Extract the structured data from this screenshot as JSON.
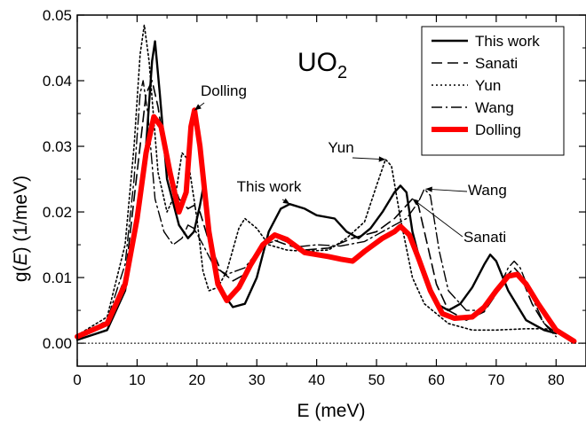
{
  "chart_data": {
    "type": "line",
    "title": "UO",
    "title_subscript": "2",
    "xlabel": "E (meV)",
    "ylabel_prefix": "g(",
    "ylabel_italic": "E",
    "ylabel_suffix": ") (1/meV)",
    "xlim": [
      0,
      85
    ],
    "ylim": [
      -0.0035,
      0.05
    ],
    "xticks": [
      0,
      10,
      20,
      30,
      40,
      50,
      60,
      70,
      80
    ],
    "xtick_labels": [
      "0",
      "10",
      "20",
      "30",
      "40",
      "50",
      "60",
      "70",
      "80"
    ],
    "yticks": [
      0.0,
      0.01,
      0.02,
      0.03,
      0.04,
      0.05
    ],
    "ytick_labels": [
      "0.00",
      "0.01",
      "0.02",
      "0.03",
      "0.04",
      "0.05"
    ],
    "grid": false,
    "legend_position": "top-right",
    "series": [
      {
        "name": "This work",
        "color": "#000000",
        "dash": "solid",
        "values": [
          [
            0,
            0.0005
          ],
          [
            5,
            0.002
          ],
          [
            8,
            0.008
          ],
          [
            10,
            0.02
          ],
          [
            11.5,
            0.03
          ],
          [
            12.5,
            0.043
          ],
          [
            13,
            0.046
          ],
          [
            13.8,
            0.038
          ],
          [
            15,
            0.025
          ],
          [
            17,
            0.018
          ],
          [
            18.5,
            0.016
          ],
          [
            19.5,
            0.017
          ],
          [
            20.5,
            0.021
          ],
          [
            21,
            0.0235
          ],
          [
            22,
            0.017
          ],
          [
            24,
            0.008
          ],
          [
            26,
            0.0055
          ],
          [
            28,
            0.006
          ],
          [
            30,
            0.01
          ],
          [
            32,
            0.017
          ],
          [
            34,
            0.0205
          ],
          [
            35.5,
            0.0212
          ],
          [
            38,
            0.0205
          ],
          [
            40,
            0.0195
          ],
          [
            43,
            0.019
          ],
          [
            45,
            0.017
          ],
          [
            47,
            0.016
          ],
          [
            49,
            0.0175
          ],
          [
            51,
            0.02
          ],
          [
            53,
            0.023
          ],
          [
            54,
            0.024
          ],
          [
            55,
            0.023
          ],
          [
            56,
            0.017
          ],
          [
            58,
            0.01
          ],
          [
            60,
            0.006
          ],
          [
            62,
            0.005
          ],
          [
            64,
            0.006
          ],
          [
            66,
            0.0085
          ],
          [
            68,
            0.012
          ],
          [
            69,
            0.0135
          ],
          [
            70,
            0.0125
          ],
          [
            72,
            0.008
          ],
          [
            75,
            0.0035
          ],
          [
            78,
            0.002
          ],
          [
            80,
            0.0015
          ]
        ]
      },
      {
        "name": "Sanati",
        "color": "#000000",
        "dash": "12,6",
        "values": [
          [
            0,
            0.0008
          ],
          [
            5,
            0.003
          ],
          [
            8,
            0.01
          ],
          [
            10,
            0.026
          ],
          [
            11.5,
            0.038
          ],
          [
            12.5,
            0.04
          ],
          [
            13.5,
            0.036
          ],
          [
            15,
            0.027
          ],
          [
            17,
            0.022
          ],
          [
            18.5,
            0.0205
          ],
          [
            19.5,
            0.021
          ],
          [
            20.5,
            0.02
          ],
          [
            22,
            0.0155
          ],
          [
            24,
            0.011
          ],
          [
            26,
            0.0095
          ],
          [
            28,
            0.0105
          ],
          [
            30,
            0.0135
          ],
          [
            32,
            0.016
          ],
          [
            35,
            0.015
          ],
          [
            38,
            0.0142
          ],
          [
            42,
            0.0145
          ],
          [
            46,
            0.016
          ],
          [
            50,
            0.017
          ],
          [
            53,
            0.019
          ],
          [
            55,
            0.021
          ],
          [
            56,
            0.022
          ],
          [
            57,
            0.021
          ],
          [
            58.5,
            0.015
          ],
          [
            60,
            0.009
          ],
          [
            62,
            0.005
          ],
          [
            65,
            0.0035
          ],
          [
            68,
            0.0048
          ],
          [
            70,
            0.0075
          ],
          [
            72,
            0.0105
          ],
          [
            73,
            0.0115
          ],
          [
            74,
            0.0105
          ],
          [
            76,
            0.006
          ],
          [
            78,
            0.003
          ],
          [
            80,
            0.0015
          ]
        ]
      },
      {
        "name": "Yun",
        "color": "#000000",
        "dash": "2,3",
        "values": [
          [
            0,
            0.0012
          ],
          [
            5,
            0.004
          ],
          [
            8,
            0.015
          ],
          [
            9.5,
            0.03
          ],
          [
            10.5,
            0.044
          ],
          [
            11.2,
            0.0485
          ],
          [
            12,
            0.043
          ],
          [
            13.5,
            0.026
          ],
          [
            15,
            0.02
          ],
          [
            16.5,
            0.023
          ],
          [
            17.5,
            0.029
          ],
          [
            18.5,
            0.028
          ],
          [
            20,
            0.019
          ],
          [
            21,
            0.011
          ],
          [
            22,
            0.008
          ],
          [
            23.5,
            0.0085
          ],
          [
            25,
            0.011
          ],
          [
            27,
            0.0175
          ],
          [
            28,
            0.019
          ],
          [
            30,
            0.0175
          ],
          [
            32,
            0.015
          ],
          [
            35,
            0.0142
          ],
          [
            38,
            0.014
          ],
          [
            42,
            0.0142
          ],
          [
            45,
            0.016
          ],
          [
            48,
            0.0185
          ],
          [
            50,
            0.024
          ],
          [
            51.5,
            0.028
          ],
          [
            52.5,
            0.027
          ],
          [
            54,
            0.019
          ],
          [
            56,
            0.01
          ],
          [
            58,
            0.006
          ],
          [
            62,
            0.003
          ],
          [
            66,
            0.002
          ],
          [
            70,
            0.002
          ],
          [
            75,
            0.0022
          ],
          [
            78,
            0.0022
          ],
          [
            80,
            0.002
          ]
        ]
      },
      {
        "name": "Wang",
        "color": "#000000",
        "dash": "12,4,2,4",
        "values": [
          [
            0,
            0.0008
          ],
          [
            5,
            0.0035
          ],
          [
            8,
            0.012
          ],
          [
            9.5,
            0.025
          ],
          [
            10.5,
            0.038
          ],
          [
            11,
            0.04
          ],
          [
            11.8,
            0.035
          ],
          [
            13,
            0.022
          ],
          [
            14.5,
            0.017
          ],
          [
            16,
            0.015
          ],
          [
            17.5,
            0.016
          ],
          [
            18.5,
            0.018
          ],
          [
            19.5,
            0.0175
          ],
          [
            21,
            0.015
          ],
          [
            23,
            0.0115
          ],
          [
            25,
            0.0105
          ],
          [
            28,
            0.0115
          ],
          [
            31,
            0.015
          ],
          [
            34,
            0.0158
          ],
          [
            37,
            0.0147
          ],
          [
            40,
            0.015
          ],
          [
            44,
            0.0148
          ],
          [
            48,
            0.0155
          ],
          [
            52,
            0.0175
          ],
          [
            55,
            0.019
          ],
          [
            57,
            0.0215
          ],
          [
            58,
            0.0235
          ],
          [
            59,
            0.0225
          ],
          [
            60.5,
            0.014
          ],
          [
            62,
            0.008
          ],
          [
            65,
            0.005
          ],
          [
            68,
            0.005
          ],
          [
            70,
            0.0075
          ],
          [
            72,
            0.0115
          ],
          [
            73,
            0.0125
          ],
          [
            74,
            0.0115
          ],
          [
            76,
            0.007
          ],
          [
            78,
            0.003
          ],
          [
            80,
            0.001
          ]
        ]
      },
      {
        "name": "Dolling",
        "color": "#ff0000",
        "dash": "solid",
        "values": [
          [
            0,
            0.001
          ],
          [
            5,
            0.003
          ],
          [
            8,
            0.009
          ],
          [
            10,
            0.019
          ],
          [
            11.5,
            0.029
          ],
          [
            12.8,
            0.0345
          ],
          [
            14,
            0.033
          ],
          [
            15.5,
            0.026
          ],
          [
            17,
            0.02
          ],
          [
            18.2,
            0.023
          ],
          [
            19,
            0.033
          ],
          [
            19.6,
            0.0355
          ],
          [
            20.5,
            0.03
          ],
          [
            22,
            0.017
          ],
          [
            23.5,
            0.009
          ],
          [
            25,
            0.0065
          ],
          [
            27,
            0.0085
          ],
          [
            29,
            0.012
          ],
          [
            31,
            0.015
          ],
          [
            33,
            0.0165
          ],
          [
            35,
            0.0158
          ],
          [
            38,
            0.0138
          ],
          [
            42,
            0.0132
          ],
          [
            44,
            0.0128
          ],
          [
            46,
            0.0125
          ],
          [
            48,
            0.014
          ],
          [
            51,
            0.016
          ],
          [
            53,
            0.017
          ],
          [
            54,
            0.0178
          ],
          [
            55.5,
            0.0165
          ],
          [
            57,
            0.013
          ],
          [
            59,
            0.008
          ],
          [
            61,
            0.0045
          ],
          [
            63,
            0.0038
          ],
          [
            66,
            0.004
          ],
          [
            68,
            0.0055
          ],
          [
            70,
            0.008
          ],
          [
            72,
            0.0102
          ],
          [
            73.5,
            0.0105
          ],
          [
            75,
            0.009
          ],
          [
            77,
            0.006
          ],
          [
            80,
            0.002
          ],
          [
            83,
            0.0003
          ]
        ]
      }
    ],
    "annotations": [
      {
        "text": "Dolling",
        "target": [
          19.6,
          0.0355
        ]
      },
      {
        "text": "This work",
        "target": [
          35.5,
          0.0212
        ]
      },
      {
        "text": "Yun",
        "target": [
          51.5,
          0.028
        ]
      },
      {
        "text": "Wang",
        "target": [
          58.2,
          0.0235
        ]
      },
      {
        "text": "Sanati",
        "target": [
          56,
          0.022
        ]
      }
    ]
  }
}
